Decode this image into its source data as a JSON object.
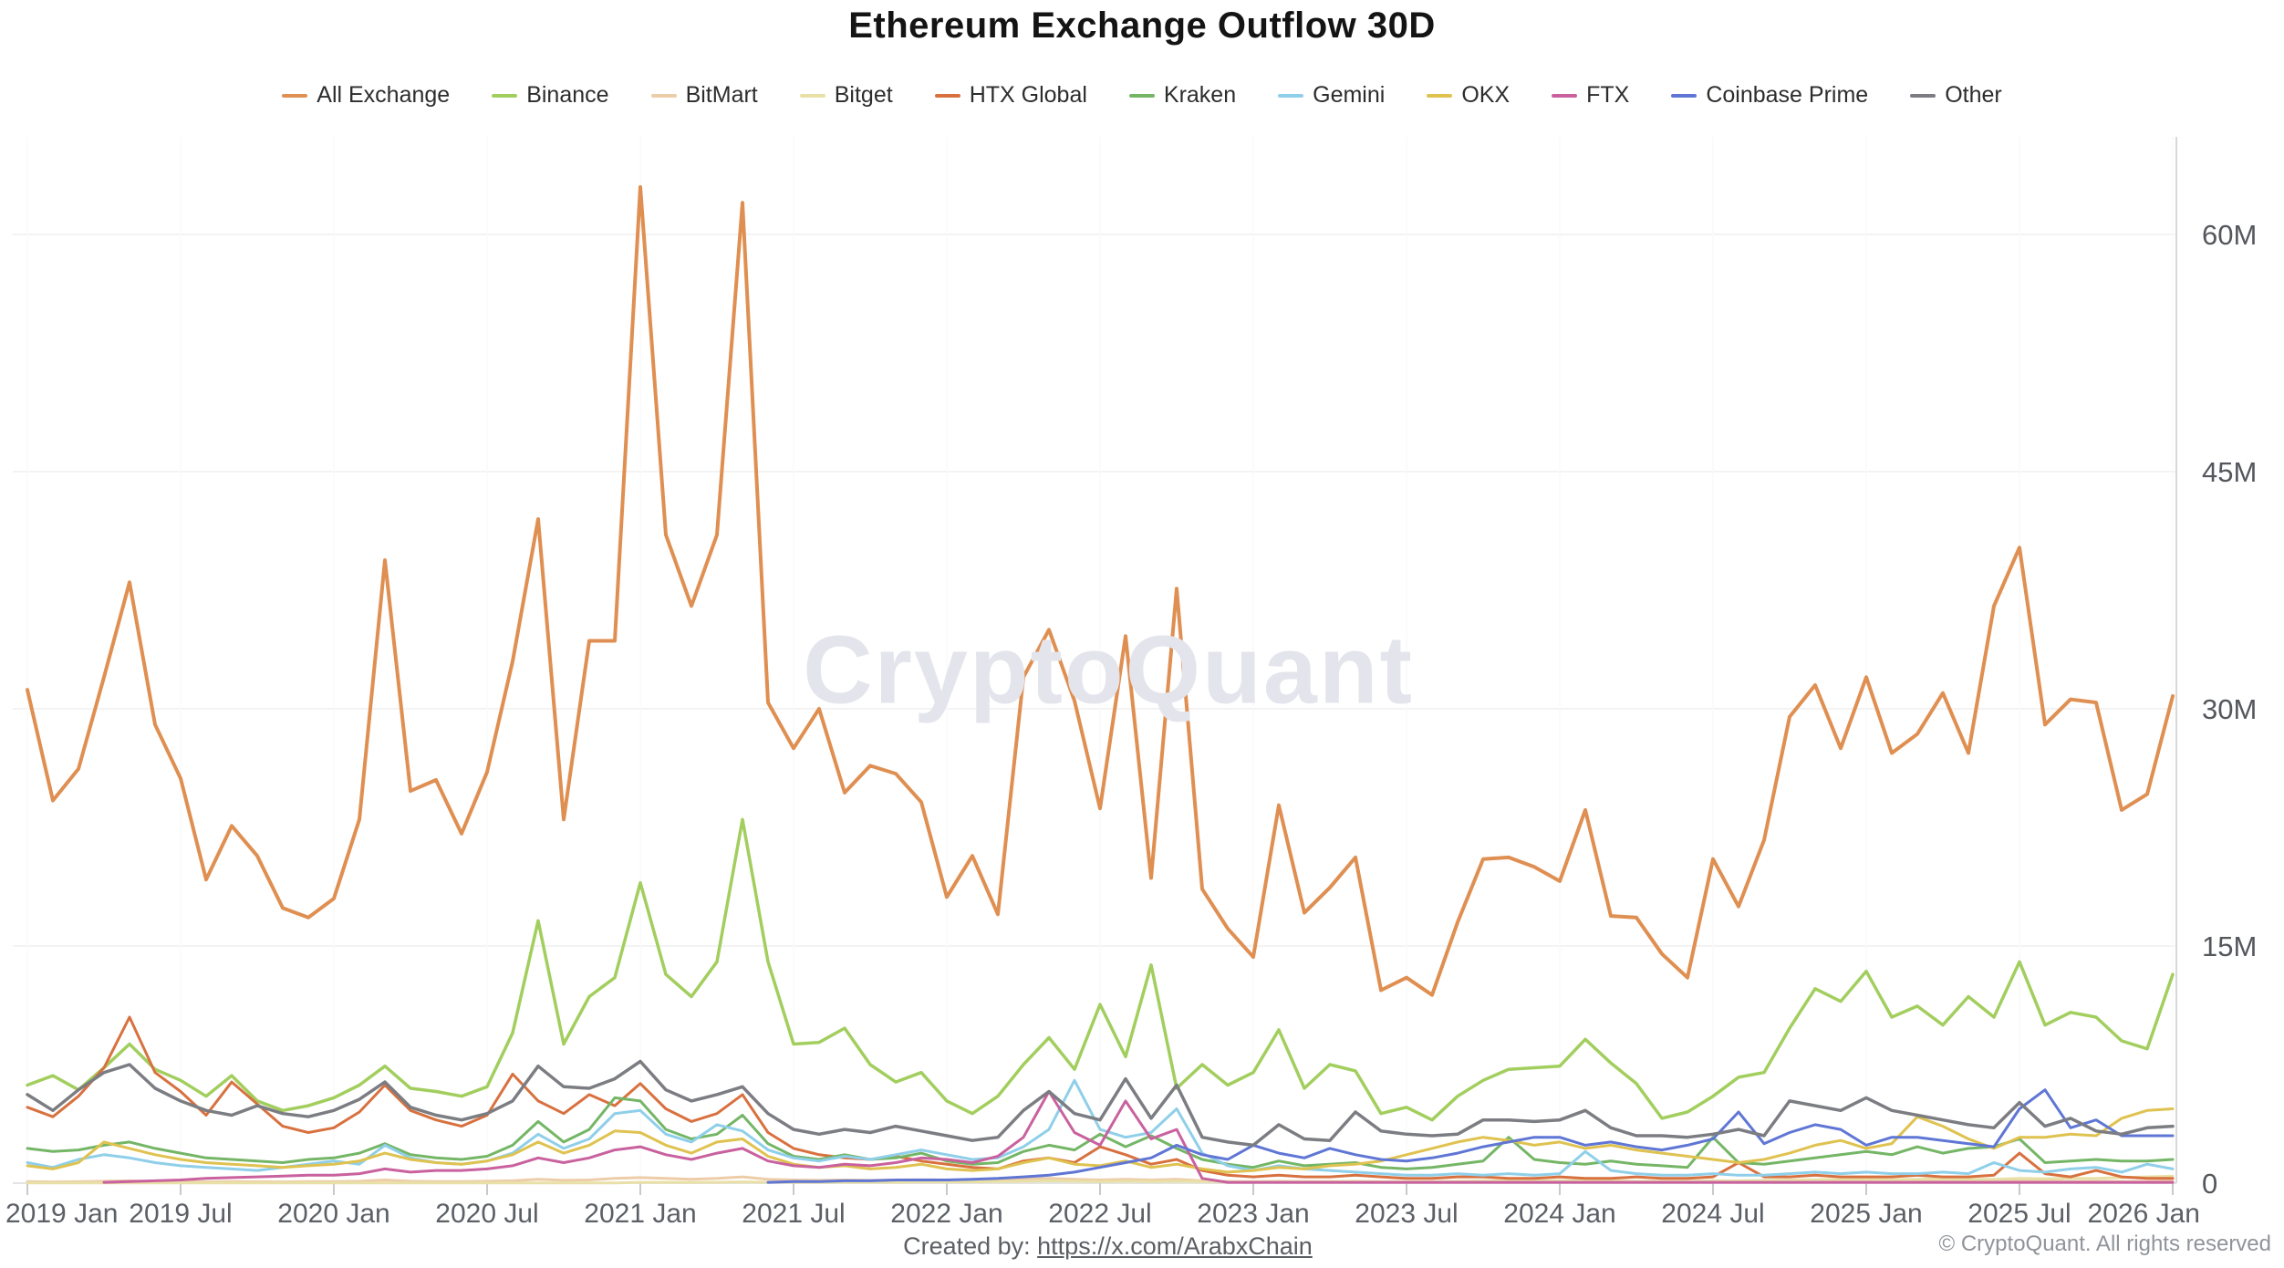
{
  "header": {
    "title": "Ethereum Exchange Outflow 30D"
  },
  "watermark_text": "CryptoQuant",
  "footer": {
    "created_by_label": "Created by: ",
    "created_by_link": "https://x.com/ArabxChain",
    "copyright": "© CryptoQuant. All rights reserved"
  },
  "chart_data": {
    "type": "line",
    "title": "Ethereum Exchange Outflow 30D",
    "x_interval": "monthly",
    "x_start": "2019 Jan",
    "x_end": "2026 Jan",
    "x_points": 85,
    "x_ticks": [
      {
        "index": 0,
        "label": "2019 Jan"
      },
      {
        "index": 6,
        "label": "2019 Jul"
      },
      {
        "index": 12,
        "label": "2020 Jan"
      },
      {
        "index": 18,
        "label": "2020 Jul"
      },
      {
        "index": 24,
        "label": "2021 Jan"
      },
      {
        "index": 30,
        "label": "2021 Jul"
      },
      {
        "index": 36,
        "label": "2022 Jan"
      },
      {
        "index": 42,
        "label": "2022 Jul"
      },
      {
        "index": 48,
        "label": "2023 Jan"
      },
      {
        "index": 54,
        "label": "2023 Jul"
      },
      {
        "index": 60,
        "label": "2024 Jan"
      },
      {
        "index": 66,
        "label": "2024 Jul"
      },
      {
        "index": 72,
        "label": "2025 Jan"
      },
      {
        "index": 78,
        "label": "2025 Jul"
      },
      {
        "index": 84,
        "label": "2026 Jan"
      }
    ],
    "ylim": [
      0,
      65
    ],
    "yticks": [
      0,
      15,
      30,
      45,
      60
    ],
    "ytick_labels": [
      "0",
      "15M",
      "30M",
      "45M",
      "60M"
    ],
    "grid": "horizontal-faint",
    "legend_position": "top",
    "value_unit": "M",
    "series": [
      {
        "name": "All Exchange",
        "color": "#df8f51",
        "width": 4,
        "values": [
          31.2,
          24.2,
          26.2,
          32,
          38,
          29,
          25.6,
          19.2,
          22.6,
          20.7,
          17.4,
          16.8,
          18,
          23,
          39.4,
          24.8,
          25.5,
          22.1,
          26,
          33,
          42,
          23,
          34.3,
          34.3,
          63,
          41,
          36.5,
          41,
          62,
          30.4,
          27.5,
          30,
          24.7,
          26.4,
          25.9,
          24.1,
          18.1,
          20.7,
          17,
          32,
          35,
          30.5,
          23.7,
          34.6,
          19.3,
          37.6,
          18.6,
          16.1,
          14.3,
          23.9,
          17.1,
          18.7,
          20.6,
          12.2,
          13,
          11.9,
          16.5,
          20.5,
          20.6,
          20,
          19.1,
          23.6,
          16.9,
          16.8,
          14.5,
          13,
          20.5,
          17.5,
          21.7,
          29.5,
          31.5,
          27.5,
          32,
          27.2,
          28.4,
          31,
          27.2,
          36.5,
          40.2,
          29,
          30.6,
          30.4,
          23.6,
          24.6,
          30.8
        ]
      },
      {
        "name": "Binance",
        "color": "#a2ce5e",
        "width": 3.5,
        "values": [
          6.2,
          6.8,
          5.9,
          7.3,
          8.8,
          7.2,
          6.5,
          5.5,
          6.8,
          5.2,
          4.6,
          4.9,
          5.4,
          6.2,
          7.4,
          6,
          5.8,
          5.5,
          6.1,
          9.5,
          16.6,
          8.8,
          11.8,
          13,
          19,
          13.2,
          11.8,
          14,
          23,
          14,
          8.8,
          8.9,
          9.8,
          7.5,
          6.4,
          7,
          5.2,
          4.4,
          5.5,
          7.5,
          9.2,
          7.2,
          11.3,
          8,
          13.8,
          6,
          7.5,
          6.2,
          7,
          9.7,
          6,
          7.5,
          7.1,
          4.4,
          4.8,
          4,
          5.5,
          6.5,
          7.2,
          7.3,
          7.4,
          9.1,
          7.6,
          6.3,
          4.1,
          4.5,
          5.5,
          6.7,
          7,
          9.8,
          12.3,
          11.5,
          13.4,
          10.5,
          11.2,
          10,
          11.8,
          10.5,
          14,
          10,
          10.8,
          10.5,
          9,
          8.5,
          13.2
        ]
      },
      {
        "name": "BitMart",
        "color": "#edcda7",
        "width": 3,
        "values": [
          0.1,
          0.08,
          0.09,
          0.12,
          0.15,
          0.1,
          0.09,
          0.08,
          0.1,
          0.09,
          0.08,
          0.1,
          0.1,
          0.12,
          0.2,
          0.12,
          0.1,
          0.1,
          0.12,
          0.15,
          0.25,
          0.18,
          0.2,
          0.3,
          0.35,
          0.3,
          0.25,
          0.3,
          0.4,
          0.25,
          0.2,
          0.18,
          0.2,
          0.18,
          0.2,
          0.22,
          0.2,
          0.18,
          0.2,
          0.25,
          0.3,
          0.25,
          0.2,
          0.25,
          0.2,
          0.25,
          0.15,
          0.1,
          0.1,
          0.12,
          0.1,
          0.1,
          0.1,
          0.08,
          0.08,
          0.08,
          0.1,
          0.1,
          0.1,
          0.1,
          0.1,
          0.1,
          0.1,
          0.08,
          0.08,
          0.08,
          0.1,
          0.1,
          0.1,
          0.12,
          0.12,
          0.12,
          0.12,
          0.1,
          0.1,
          0.1,
          0.1,
          0.12,
          0.15,
          0.12,
          0.1,
          0.12,
          0.1,
          0.1,
          0.12
        ]
      },
      {
        "name": "Bitget",
        "color": "#e9e0a8",
        "width": 3,
        "values": [
          0.02,
          0.02,
          0.02,
          0.02,
          0.02,
          0.02,
          0.02,
          0.02,
          0.02,
          0.02,
          0.02,
          0.02,
          0.02,
          0.02,
          0.02,
          0.02,
          0.02,
          0.02,
          0.02,
          0.02,
          0.02,
          0.02,
          0.02,
          0.02,
          0.05,
          0.05,
          0.05,
          0.06,
          0.08,
          0.06,
          0.05,
          0.05,
          0.06,
          0.05,
          0.06,
          0.08,
          0.08,
          0.08,
          0.1,
          0.12,
          0.15,
          0.12,
          0.1,
          0.12,
          0.1,
          0.12,
          0.1,
          0.08,
          0.08,
          0.1,
          0.1,
          0.1,
          0.12,
          0.1,
          0.1,
          0.1,
          0.12,
          0.15,
          0.15,
          0.15,
          0.15,
          0.18,
          0.15,
          0.12,
          0.12,
          0.12,
          0.15,
          0.15,
          0.18,
          0.2,
          0.22,
          0.25,
          0.25,
          0.22,
          0.25,
          0.28,
          0.25,
          0.25,
          0.3,
          0.28,
          0.3,
          0.3,
          0.35,
          0.4,
          0.45
        ]
      },
      {
        "name": "HTX Global",
        "color": "#d8713f",
        "width": 3,
        "values": [
          4.8,
          4.2,
          5.5,
          7.3,
          10.5,
          7,
          5.8,
          4.3,
          6.4,
          5,
          3.6,
          3.2,
          3.5,
          4.5,
          6.2,
          4.6,
          4,
          3.6,
          4.3,
          6.9,
          5.2,
          4.4,
          5.6,
          4.9,
          6.3,
          4.7,
          3.9,
          4.4,
          5.6,
          3.2,
          2.2,
          1.8,
          1.6,
          1.5,
          1.7,
          1.4,
          1.2,
          1,
          0.9,
          1.4,
          1.6,
          1.3,
          2.3,
          1.8,
          1.2,
          1.5,
          0.8,
          0.5,
          0.4,
          0.5,
          0.4,
          0.4,
          0.5,
          0.4,
          0.3,
          0.3,
          0.4,
          0.4,
          0.3,
          0.3,
          0.4,
          0.3,
          0.3,
          0.4,
          0.3,
          0.3,
          0.4,
          1.3,
          0.4,
          0.4,
          0.5,
          0.4,
          0.4,
          0.4,
          0.5,
          0.4,
          0.4,
          0.5,
          1.9,
          0.6,
          0.4,
          0.8,
          0.4,
          0.3,
          0.3
        ]
      },
      {
        "name": "Kraken",
        "color": "#74b666",
        "width": 3,
        "values": [
          2.2,
          2,
          2.1,
          2.4,
          2.6,
          2.2,
          1.9,
          1.6,
          1.5,
          1.4,
          1.3,
          1.5,
          1.6,
          1.9,
          2.5,
          1.8,
          1.6,
          1.5,
          1.7,
          2.4,
          3.9,
          2.6,
          3.4,
          5.4,
          5.2,
          3.4,
          2.8,
          3.1,
          4.3,
          2.5,
          1.7,
          1.5,
          1.8,
          1.5,
          1.6,
          1.9,
          1.4,
          1.2,
          1.3,
          2,
          2.4,
          2.1,
          3.1,
          2.3,
          3,
          2.2,
          1.5,
          1.2,
          1,
          1.4,
          1.1,
          1.2,
          1.3,
          1,
          0.9,
          1,
          1.2,
          1.4,
          2.9,
          1.5,
          1.3,
          1.2,
          1.4,
          1.2,
          1.1,
          1,
          2.9,
          1.3,
          1.2,
          1.4,
          1.6,
          1.8,
          2,
          1.8,
          2.3,
          1.9,
          2.2,
          2.3,
          2.8,
          1.3,
          1.4,
          1.5,
          1.4,
          1.4,
          1.5
        ]
      },
      {
        "name": "Gemini",
        "color": "#8fcfe9",
        "width": 3,
        "values": [
          1.3,
          1,
          1.5,
          1.8,
          1.6,
          1.3,
          1.1,
          1,
          0.9,
          0.8,
          1,
          1.2,
          1.4,
          1.2,
          2.4,
          1.6,
          1.3,
          1.2,
          1.4,
          1.9,
          3.1,
          2.2,
          2.8,
          4.4,
          4.6,
          3.1,
          2.6,
          3.7,
          3.3,
          2.1,
          1.6,
          1.4,
          1.7,
          1.5,
          1.8,
          2.1,
          1.8,
          1.5,
          1.6,
          2.3,
          3.4,
          6.5,
          3.4,
          2.9,
          3.2,
          4.7,
          1.9,
          1.1,
          0.8,
          1.1,
          0.9,
          0.8,
          0.7,
          0.6,
          0.5,
          0.5,
          0.6,
          0.5,
          0.6,
          0.5,
          0.6,
          2,
          0.8,
          0.6,
          0.5,
          0.5,
          0.6,
          0.5,
          0.5,
          0.6,
          0.7,
          0.6,
          0.7,
          0.6,
          0.6,
          0.7,
          0.6,
          1.3,
          0.8,
          0.7,
          0.9,
          1,
          0.7,
          1.2,
          0.9
        ]
      },
      {
        "name": "OKX",
        "color": "#dfc24f",
        "width": 3,
        "values": [
          1.1,
          0.9,
          1.3,
          2.6,
          2.2,
          1.8,
          1.5,
          1.3,
          1.2,
          1.1,
          1,
          1.1,
          1.2,
          1.4,
          1.9,
          1.5,
          1.3,
          1.2,
          1.4,
          1.8,
          2.6,
          1.9,
          2.4,
          3.3,
          3.2,
          2.4,
          1.9,
          2.6,
          2.8,
          1.7,
          1.2,
          1,
          1.1,
          0.9,
          1,
          1.2,
          0.9,
          0.8,
          0.9,
          1.3,
          1.6,
          1.2,
          1.1,
          1.4,
          1,
          1.2,
          0.9,
          0.7,
          0.8,
          1,
          0.9,
          1.1,
          1.2,
          1.4,
          1.8,
          2.2,
          2.6,
          2.9,
          2.7,
          2.4,
          2.6,
          2.2,
          2.4,
          2.1,
          1.9,
          1.7,
          1.5,
          1.3,
          1.5,
          1.9,
          2.4,
          2.7,
          2.2,
          2.5,
          4.2,
          3.6,
          2.8,
          2.2,
          2.9,
          2.9,
          3.1,
          3,
          4.1,
          4.6,
          4.7
        ]
      },
      {
        "name": "FTX",
        "color": "#c9619e",
        "width": 3,
        "values": [
          null,
          null,
          null,
          0.05,
          0.1,
          0.15,
          0.2,
          0.3,
          0.35,
          0.4,
          0.45,
          0.5,
          0.5,
          0.6,
          0.9,
          0.7,
          0.8,
          0.8,
          0.9,
          1.1,
          1.6,
          1.3,
          1.6,
          2.1,
          2.3,
          1.8,
          1.5,
          1.9,
          2.2,
          1.4,
          1.1,
          1,
          1.2,
          1.1,
          1.3,
          1.6,
          1.5,
          1.3,
          1.7,
          2.9,
          5.8,
          3.2,
          2.4,
          5.2,
          2.8,
          3.4,
          0.3,
          0.05,
          0.05,
          0.05,
          0.05,
          0.05,
          0.05,
          0.05,
          0.05,
          0.05,
          0.05,
          0.05,
          0.05,
          0.05,
          0.05,
          0.05,
          0.05,
          0.05,
          0.05,
          0.05,
          0.05,
          0.05,
          0.05,
          0.05,
          0.05,
          0.05,
          0.05,
          0.05,
          0.05,
          0.05,
          0.05,
          0.05,
          0.05,
          0.05,
          0.05,
          0.05,
          0.05,
          0.05,
          0.05
        ]
      },
      {
        "name": "Coinbase Prime",
        "color": "#5f76d5",
        "width": 3,
        "values": [
          null,
          null,
          null,
          null,
          null,
          null,
          null,
          null,
          null,
          null,
          null,
          null,
          null,
          null,
          null,
          null,
          null,
          null,
          null,
          null,
          null,
          null,
          null,
          null,
          null,
          null,
          null,
          null,
          null,
          0.05,
          0.1,
          0.1,
          0.15,
          0.15,
          0.2,
          0.2,
          0.2,
          0.25,
          0.3,
          0.4,
          0.5,
          0.7,
          1,
          1.3,
          1.6,
          2.4,
          1.8,
          1.5,
          2.4,
          1.9,
          1.6,
          2.2,
          1.8,
          1.5,
          1.4,
          1.6,
          1.9,
          2.3,
          2.6,
          2.9,
          2.9,
          2.4,
          2.6,
          2.3,
          2.1,
          2.4,
          2.8,
          4.5,
          2.5,
          3.2,
          3.7,
          3.4,
          2.4,
          2.9,
          2.9,
          2.7,
          2.5,
          2.3,
          4.7,
          5.9,
          3.5,
          4,
          3,
          3,
          3
        ]
      },
      {
        "name": "Other",
        "color": "#7b7d82",
        "width": 3.5,
        "values": [
          5.6,
          4.6,
          5.9,
          7,
          7.5,
          6,
          5.2,
          4.6,
          4.3,
          4.9,
          4.4,
          4.2,
          4.6,
          5.3,
          6.4,
          4.8,
          4.3,
          4,
          4.4,
          5.2,
          7.4,
          6.1,
          6,
          6.6,
          7.7,
          5.9,
          5.2,
          5.6,
          6.1,
          4.4,
          3.4,
          3.1,
          3.4,
          3.2,
          3.6,
          3.3,
          3,
          2.7,
          2.9,
          4.6,
          5.8,
          4.4,
          4,
          6.6,
          4.1,
          6.2,
          2.9,
          2.6,
          2.4,
          3.7,
          2.8,
          2.7,
          4.5,
          3.3,
          3.1,
          3,
          3.1,
          4,
          4,
          3.9,
          4,
          4.6,
          3.5,
          3,
          3,
          2.9,
          3.1,
          3.4,
          3,
          5.2,
          4.9,
          4.6,
          5.4,
          4.6,
          4.3,
          4,
          3.7,
          3.5,
          5.1,
          3.6,
          4.1,
          3.3,
          3.1,
          3.5,
          3.6
        ]
      }
    ]
  }
}
